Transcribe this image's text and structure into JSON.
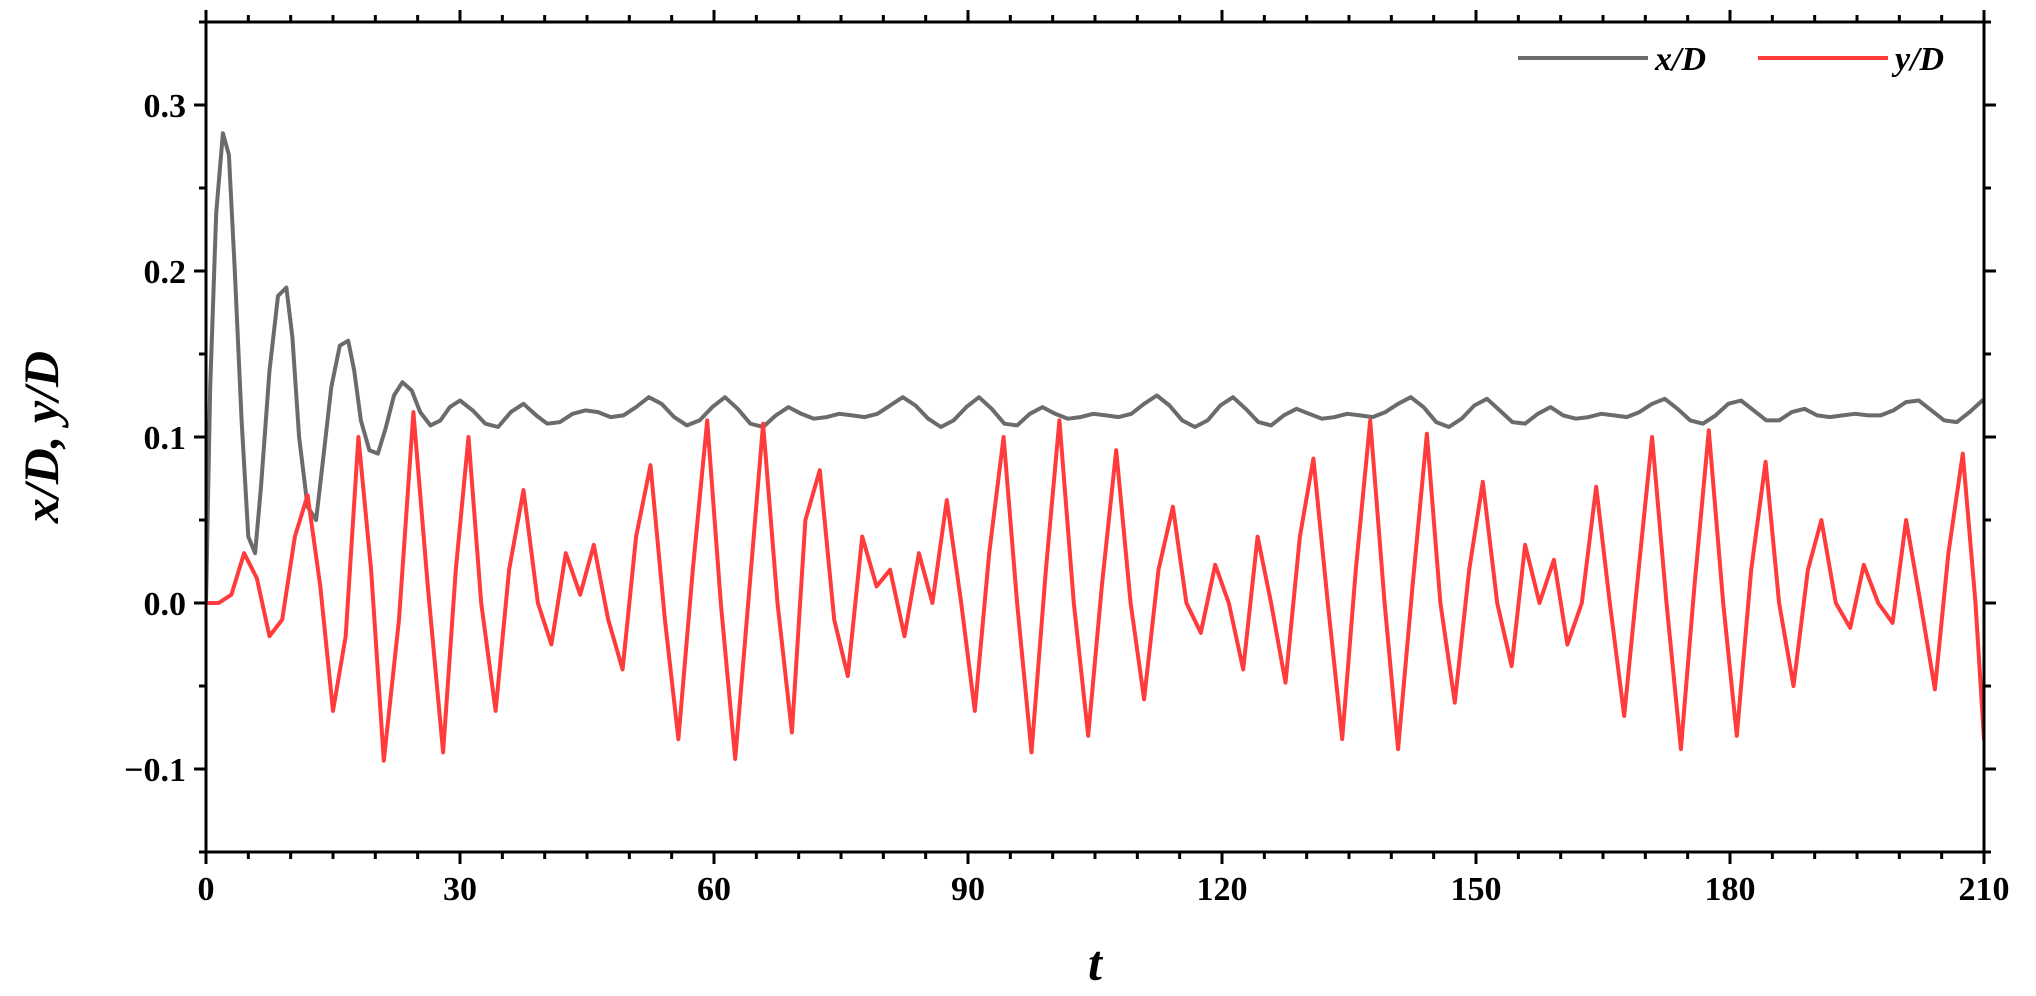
{
  "chart_data": {
    "type": "line",
    "title": "",
    "xlabel": "t",
    "ylabel": "x/D, y/D",
    "xlim": [
      0,
      210
    ],
    "ylim": [
      -0.15,
      0.35
    ],
    "xticks": [
      0,
      30,
      60,
      90,
      120,
      150,
      180,
      210
    ],
    "xtick_labels": [
      "0",
      "30",
      "60",
      "90",
      "120",
      "150",
      "180",
      "210"
    ],
    "yticks": [
      -0.1,
      0.0,
      0.1,
      0.2,
      0.3
    ],
    "ytick_labels": [
      "−0.1",
      "0.0",
      "0.1",
      "0.2",
      "0.3"
    ],
    "grid": false,
    "legend_position": "top-right",
    "legend_labels": [
      "x/D",
      "y/D"
    ],
    "series": [
      {
        "name": "x/D",
        "color": "#6b6b6b",
        "x": [
          0,
          0.5,
          1.2,
          2.0,
          2.7,
          3.4,
          4.2,
          5.0,
          5.8,
          6.5,
          7.5,
          8.5,
          9.5,
          10.2,
          11.0,
          12.0,
          13.0,
          13.8,
          14.8,
          15.8,
          16.8,
          17.5,
          18.3,
          19.3,
          20.3,
          21.2,
          22.2,
          23.2,
          24.3,
          25.3,
          26.5,
          27.7,
          28.8,
          30.0,
          31.5,
          33.0,
          34.5,
          36.0,
          37.5,
          39.0,
          40.3,
          41.8,
          43.3,
          44.8,
          46.3,
          47.8,
          49.3,
          50.8,
          52.3,
          53.8,
          55.3,
          56.8,
          58.3,
          59.8,
          61.3,
          62.8,
          64.3,
          65.8,
          67.3,
          68.8,
          70.3,
          71.8,
          73.3,
          74.8,
          76.3,
          77.8,
          79.3,
          80.8,
          82.3,
          83.8,
          85.3,
          86.8,
          88.3,
          89.8,
          91.3,
          92.8,
          94.3,
          95.8,
          97.3,
          98.8,
          100.3,
          101.8,
          103.3,
          104.8,
          106.3,
          107.8,
          109.3,
          110.8,
          112.3,
          113.8,
          115.3,
          116.8,
          118.3,
          119.8,
          121.3,
          122.8,
          124.3,
          125.8,
          127.3,
          128.8,
          130.3,
          131.8,
          133.3,
          134.8,
          136.3,
          137.8,
          139.3,
          140.8,
          142.3,
          143.8,
          145.3,
          146.8,
          148.3,
          149.8,
          151.3,
          152.8,
          154.3,
          155.8,
          157.3,
          158.8,
          160.3,
          161.8,
          163.3,
          164.8,
          166.3,
          167.8,
          169.3,
          170.8,
          172.3,
          173.8,
          175.3,
          176.8,
          178.3,
          179.8,
          181.3,
          182.8,
          184.3,
          185.8,
          187.3,
          188.8,
          190.3,
          191.8,
          193.3,
          194.8,
          196.3,
          197.8,
          199.3,
          200.8,
          202.3,
          203.8,
          205.3,
          206.8,
          208.3,
          209.8
        ],
        "y": [
          0.0,
          0.13,
          0.235,
          0.283,
          0.27,
          0.2,
          0.11,
          0.04,
          0.03,
          0.07,
          0.14,
          0.185,
          0.19,
          0.16,
          0.1,
          0.058,
          0.05,
          0.085,
          0.13,
          0.155,
          0.158,
          0.14,
          0.11,
          0.092,
          0.09,
          0.105,
          0.125,
          0.133,
          0.128,
          0.115,
          0.107,
          0.11,
          0.118,
          0.122,
          0.116,
          0.108,
          0.106,
          0.115,
          0.12,
          0.113,
          0.108,
          0.109,
          0.114,
          0.116,
          0.115,
          0.112,
          0.113,
          0.118,
          0.124,
          0.12,
          0.112,
          0.107,
          0.11,
          0.118,
          0.124,
          0.117,
          0.108,
          0.106,
          0.113,
          0.118,
          0.114,
          0.111,
          0.112,
          0.114,
          0.113,
          0.112,
          0.114,
          0.119,
          0.124,
          0.119,
          0.111,
          0.106,
          0.11,
          0.118,
          0.124,
          0.117,
          0.108,
          0.107,
          0.114,
          0.118,
          0.114,
          0.111,
          0.112,
          0.114,
          0.113,
          0.112,
          0.114,
          0.12,
          0.125,
          0.119,
          0.11,
          0.106,
          0.11,
          0.119,
          0.124,
          0.117,
          0.109,
          0.107,
          0.113,
          0.117,
          0.114,
          0.111,
          0.112,
          0.114,
          0.113,
          0.112,
          0.115,
          0.12,
          0.124,
          0.118,
          0.109,
          0.106,
          0.111,
          0.119,
          0.123,
          0.116,
          0.109,
          0.108,
          0.114,
          0.118,
          0.113,
          0.111,
          0.112,
          0.114,
          0.113,
          0.112,
          0.115,
          0.12,
          0.123,
          0.117,
          0.11,
          0.108,
          0.113,
          0.12,
          0.122,
          0.116,
          0.11,
          0.11,
          0.115,
          0.117,
          0.113,
          0.112,
          0.113,
          0.114,
          0.113,
          0.113,
          0.116,
          0.121,
          0.122,
          0.116,
          0.11,
          0.109,
          0.115,
          0.122
        ]
      },
      {
        "name": "y/D",
        "color": "#ff3b3b",
        "x": [
          0,
          1.5,
          3.0,
          4.5,
          6.0,
          7.5,
          9.0,
          10.5,
          12.0,
          13.5,
          15.0,
          16.5,
          18.0,
          19.5,
          21.0,
          22.8,
          24.5,
          26.2,
          28.0,
          29.5,
          31.0,
          32.5,
          34.2,
          35.8,
          37.5,
          39.2,
          40.8,
          42.5,
          44.2,
          45.8,
          47.5,
          49.2,
          50.8,
          52.5,
          54.2,
          55.8,
          57.5,
          59.2,
          60.8,
          62.5,
          64.2,
          65.8,
          67.5,
          69.2,
          70.8,
          72.5,
          74.2,
          75.8,
          77.5,
          79.2,
          80.8,
          82.5,
          84.2,
          85.8,
          87.5,
          89.2,
          90.8,
          92.5,
          94.2,
          95.8,
          97.5,
          99.2,
          100.8,
          102.5,
          104.2,
          105.8,
          107.5,
          109.2,
          110.8,
          112.5,
          114.2,
          115.8,
          117.5,
          119.2,
          120.8,
          122.5,
          124.2,
          125.8,
          127.5,
          129.2,
          130.8,
          132.5,
          134.2,
          135.8,
          137.5,
          139.2,
          140.8,
          142.5,
          144.2,
          145.8,
          147.5,
          149.2,
          150.8,
          152.5,
          154.2,
          155.8,
          157.5,
          159.2,
          160.8,
          162.5,
          164.2,
          165.8,
          167.5,
          169.2,
          170.8,
          172.5,
          174.2,
          175.8,
          177.5,
          179.2,
          180.8,
          182.5,
          184.2,
          185.8,
          187.5,
          189.2,
          190.8,
          192.5,
          194.2,
          195.8,
          197.5,
          199.2,
          200.8,
          202.5,
          204.2,
          205.8,
          207.5,
          209.0,
          210.0
        ],
        "y": [
          0.0,
          0.0,
          0.005,
          0.03,
          0.015,
          -0.02,
          -0.01,
          0.04,
          0.065,
          0.01,
          -0.065,
          -0.02,
          0.1,
          0.02,
          -0.095,
          -0.01,
          0.115,
          0.01,
          -0.09,
          0.02,
          0.1,
          0.0,
          -0.065,
          0.02,
          0.068,
          0.0,
          -0.025,
          0.03,
          0.005,
          0.035,
          -0.01,
          -0.04,
          0.04,
          0.083,
          -0.01,
          -0.082,
          0.02,
          0.11,
          0.0,
          -0.094,
          0.01,
          0.108,
          0.0,
          -0.078,
          0.05,
          0.08,
          -0.01,
          -0.044,
          0.04,
          0.01,
          0.02,
          -0.02,
          0.03,
          0.0,
          0.062,
          0.0,
          -0.065,
          0.03,
          0.1,
          0.0,
          -0.09,
          0.02,
          0.11,
          0.0,
          -0.08,
          0.01,
          0.092,
          0.0,
          -0.058,
          0.02,
          0.058,
          0.0,
          -0.018,
          0.023,
          0.0,
          -0.04,
          0.04,
          0.0,
          -0.048,
          0.04,
          0.087,
          0.0,
          -0.082,
          0.02,
          0.11,
          0.0,
          -0.088,
          0.01,
          0.102,
          0.0,
          -0.06,
          0.02,
          0.073,
          0.0,
          -0.038,
          0.035,
          0.0,
          0.026,
          -0.025,
          0.0,
          0.07,
          0.0,
          -0.068,
          0.02,
          0.1,
          0.0,
          -0.088,
          0.01,
          0.104,
          0.0,
          -0.08,
          0.02,
          0.085,
          0.0,
          -0.05,
          0.02,
          0.05,
          0.0,
          -0.015,
          0.023,
          0.0,
          -0.012,
          0.05,
          0.0,
          -0.052,
          0.03,
          0.09,
          0.0,
          -0.082
        ]
      }
    ]
  }
}
